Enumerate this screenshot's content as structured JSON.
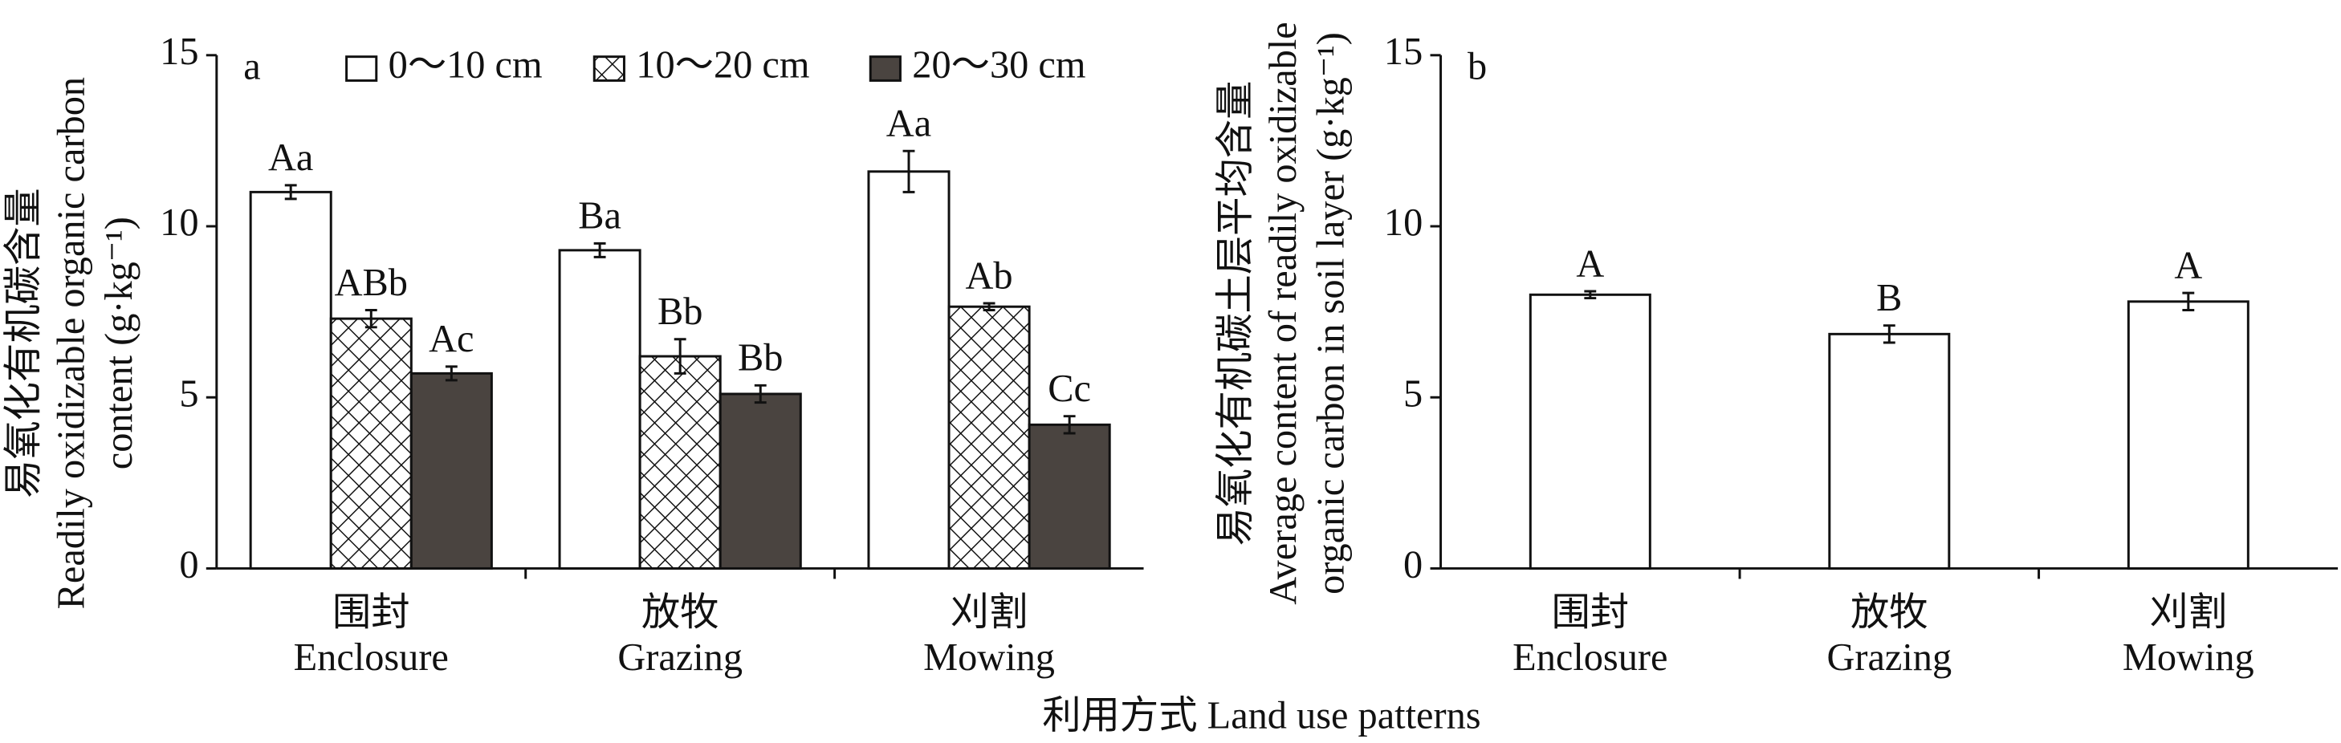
{
  "chart_data": [
    {
      "type": "bar",
      "panel_label": "a",
      "ylabel": [
        "易氧化有机碳含量",
        "Readily oxidizable organic carbon",
        "content (g·kg⁻¹)"
      ],
      "categories": [
        [
          "围封",
          "Enclosure"
        ],
        [
          "放牧",
          "Grazing"
        ],
        [
          "刈割",
          "Mowing"
        ]
      ],
      "series": [
        {
          "name": "0～10 cm",
          "color": "#ffffff",
          "values": [
            11.0,
            9.3,
            11.6
          ],
          "errors": [
            0.2,
            0.2,
            0.6
          ],
          "annotations": [
            "Aa",
            "Ba",
            "Aa"
          ]
        },
        {
          "name": "10～20 cm",
          "color": "#ffffff",
          "hatch": "crosshatch",
          "values": [
            7.3,
            6.2,
            7.65
          ],
          "errors": [
            0.25,
            0.5,
            0.1
          ],
          "annotations": [
            "ABb",
            "Bb",
            "Ab"
          ]
        },
        {
          "name": "20～30 cm",
          "color": "#4a4440",
          "values": [
            5.7,
            5.1,
            4.2
          ],
          "errors": [
            0.2,
            0.25,
            0.25
          ],
          "annotations": [
            "Ac",
            "Bb",
            "Cc"
          ]
        }
      ],
      "ylim": [
        0,
        15
      ],
      "yticks": [
        0,
        5,
        10,
        15
      ],
      "legend": "top"
    },
    {
      "type": "bar",
      "panel_label": "b",
      "ylabel": [
        "易氧化有机碳土层平均含量",
        "Average content of readily oxidizable",
        "organic carbon in soil layer (g·kg⁻¹)"
      ],
      "categories": [
        [
          "围封",
          "Enclosure"
        ],
        [
          "放牧",
          "Grazing"
        ],
        [
          "刈割",
          "Mowing"
        ]
      ],
      "series": [
        {
          "color": "#ffffff",
          "values": [
            8.0,
            6.85,
            7.8
          ],
          "errors": [
            0.1,
            0.25,
            0.25
          ],
          "annotations": [
            "A",
            "B",
            "A"
          ]
        }
      ],
      "ylim": [
        0,
        15
      ],
      "yticks": [
        0,
        5,
        10,
        15
      ]
    }
  ],
  "xlabel": "利用方式 Land use patterns"
}
